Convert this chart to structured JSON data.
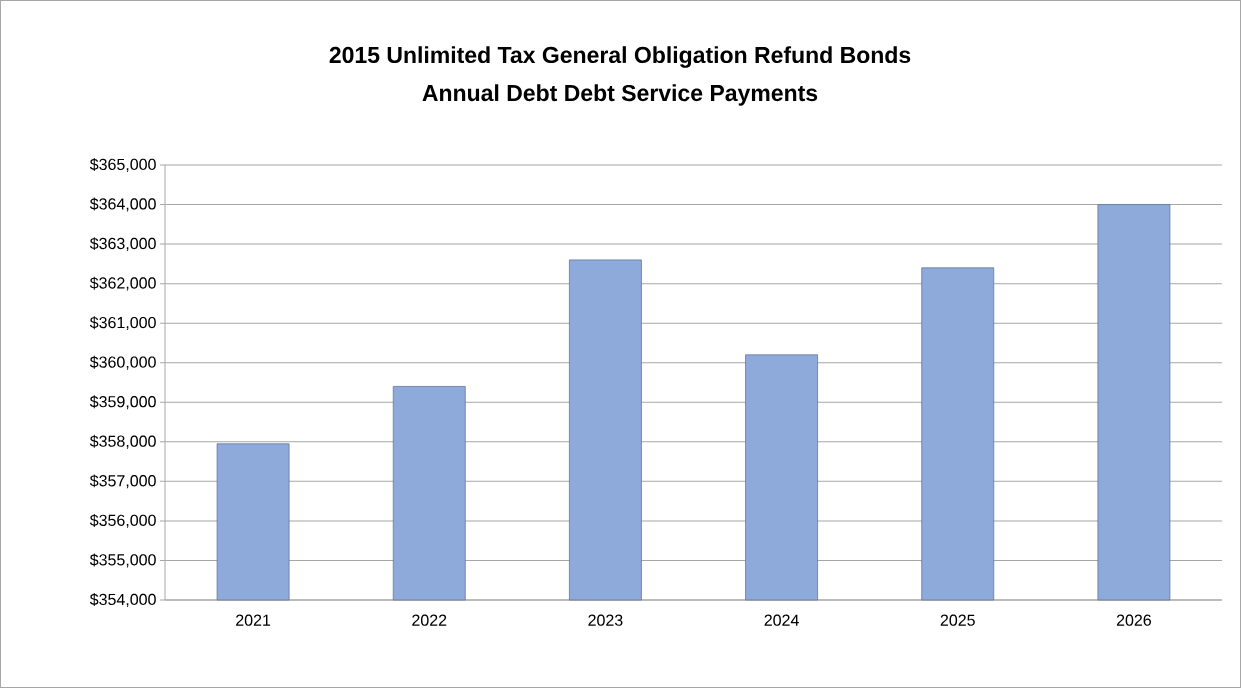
{
  "chart_data": {
    "type": "bar",
    "title": "2015 Unlimited Tax General Obligation Refund Bonds",
    "subtitle": "Annual Debt Debt Service Payments",
    "categories": [
      "2021",
      "2022",
      "2023",
      "2024",
      "2025",
      "2026"
    ],
    "values": [
      357950,
      359400,
      362600,
      360200,
      362400,
      364000
    ],
    "color": "#8eaadb",
    "ylim": [
      354000,
      365000
    ],
    "yticks": [
      {
        "value": 354000,
        "label": "$354,000"
      },
      {
        "value": 355000,
        "label": "$355,000"
      },
      {
        "value": 356000,
        "label": "$356,000"
      },
      {
        "value": 357000,
        "label": "$357,000"
      },
      {
        "value": 358000,
        "label": "$358,000"
      },
      {
        "value": 359000,
        "label": "$359,000"
      },
      {
        "value": 360000,
        "label": "$360,000"
      },
      {
        "value": 361000,
        "label": "$361,000"
      },
      {
        "value": 362000,
        "label": "$362,000"
      },
      {
        "value": 363000,
        "label": "$363,000"
      },
      {
        "value": 364000,
        "label": "$364,000"
      },
      {
        "value": 365000,
        "label": "$365,000"
      }
    ],
    "grid": "y"
  }
}
